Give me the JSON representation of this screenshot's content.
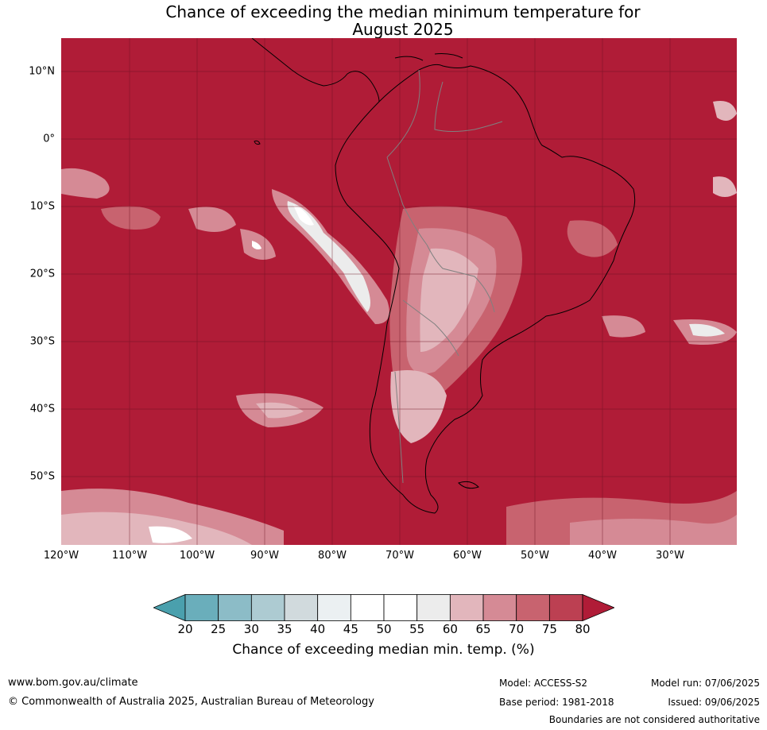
{
  "title_line1": "Chance of exceeding the median minimum temperature for",
  "title_line2": "August 2025",
  "lat_labels": [
    "10°N",
    "0°",
    "10°S",
    "20°S",
    "30°S",
    "40°S",
    "50°S"
  ],
  "lon_labels": [
    "120°W",
    "110°W",
    "100°W",
    "90°W",
    "80°W",
    "70°W",
    "60°W",
    "50°W",
    "40°W",
    "30°W"
  ],
  "colorbar": {
    "ticks": [
      "20",
      "25",
      "30",
      "35",
      "40",
      "45",
      "50",
      "55",
      "60",
      "65",
      "70",
      "75",
      "80"
    ],
    "colors": [
      "#4aa0ad",
      "#6aaebb",
      "#8cbcc7",
      "#adcbd2",
      "#d1dadd",
      "#ebf0f2",
      "#ffffff",
      "#ffffff",
      "#ececec",
      "#e2b6bc",
      "#d58a95",
      "#c8636f",
      "#bc4052",
      "#b01c37"
    ],
    "label": "Chance of exceeding median min. temp. (%)"
  },
  "map_colors": {
    "ocean_base": "#b01c37",
    "coast": "#000000",
    "borders": "#808080"
  },
  "footer": {
    "website": "www.bom.gov.au/climate",
    "copyright": "© Commonwealth of Australia 2025, Australian Bureau of Meteorology",
    "model": "Model: ACCESS-S2",
    "base_period": "Base period: 1981-2018",
    "model_run": "Model run: 07/06/2025",
    "issued": "Issued: 09/06/2025",
    "disclaimer": "Boundaries are not considered authoritative"
  }
}
